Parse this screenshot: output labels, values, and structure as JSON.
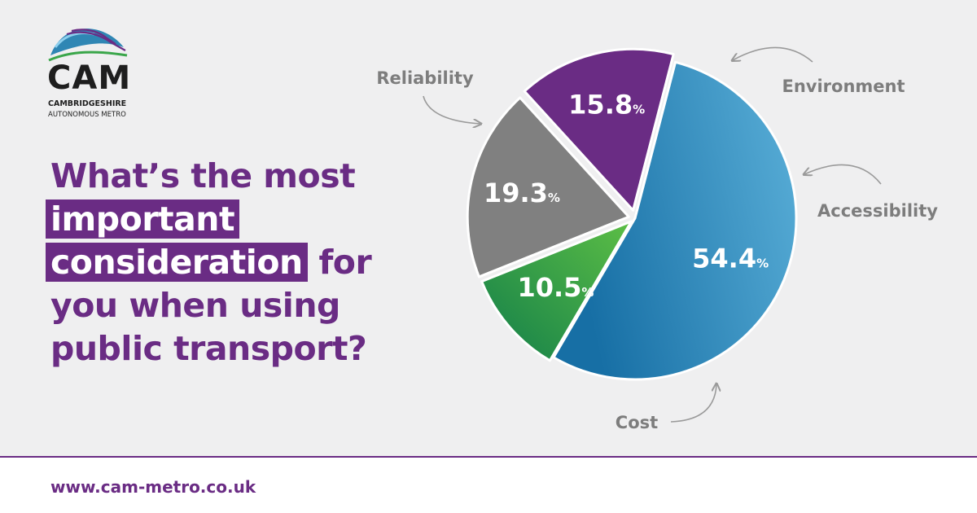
{
  "brand": {
    "logo_word": "CAM",
    "logo_line1": "CAMBRIDGESHIRE",
    "logo_line2": "AUTONOMOUS METRO",
    "colors": {
      "purple": "#6a2c84",
      "blue": "#3f9ccb",
      "green": "#3aa64a",
      "grey": "#808080",
      "background": "#efeff0"
    }
  },
  "headline": {
    "line1": "What’s the most",
    "line2_highlight": "important",
    "line3_highlight": "consideration",
    "line3_rest": " for",
    "line4": "you when using",
    "line5": "public transport?"
  },
  "chart_data": {
    "type": "pie",
    "slices": [
      {
        "label": "Reliability",
        "value": 54.4,
        "display": "54.4",
        "color": "#3f9ccb"
      },
      {
        "label": "Environment",
        "value": 10.5,
        "display": "10.5",
        "color": "#3aa64a"
      },
      {
        "label": "Accessibility",
        "value": 19.3,
        "display": "19.3",
        "color": "#808080"
      },
      {
        "label": "Cost",
        "value": 15.8,
        "display": "15.8",
        "color": "#6a2c84"
      }
    ],
    "unit": "%"
  },
  "footer": {
    "url": "www.cam-metro.co.uk"
  }
}
